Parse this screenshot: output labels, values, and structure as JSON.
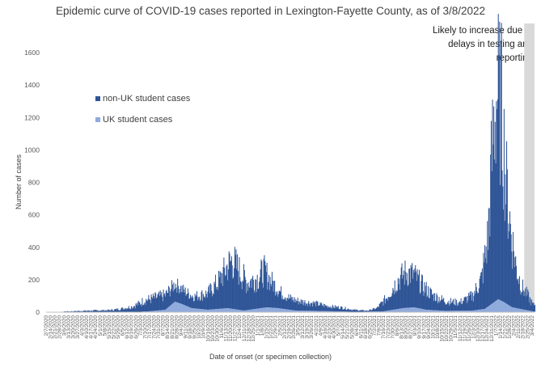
{
  "chart_data": {
    "type": "bar",
    "title": "Epidemic curve of COVID-19 cases reported in Lexington-Fayette County, as of 3/8/2022",
    "xlabel": "Date of onset (or specimen collection)",
    "ylabel": "Number of cases",
    "ylim": [
      0,
      1600
    ],
    "yticks": [
      0,
      200,
      400,
      600,
      800,
      1000,
      1200,
      1400,
      1600
    ],
    "x_range": [
      "2/7/2020",
      "3/8/2022"
    ],
    "shaded_region": {
      "start": "2/20/2022",
      "end": "3/8/2022",
      "label": "Likely to increase due to delays in testing and reporting"
    },
    "legend_position": "upper-left",
    "stacked": true,
    "series": [
      {
        "name": "non-UK student cases",
        "color": "#2f5597",
        "points": [
          [
            "3/15/2020",
            5
          ],
          [
            "4/1/2020",
            8
          ],
          [
            "4/20/2020",
            10
          ],
          [
            "5/15/2020",
            12
          ],
          [
            "6/1/2020",
            20
          ],
          [
            "6/20/2020",
            35
          ],
          [
            "7/10/2020",
            70
          ],
          [
            "7/25/2020",
            80
          ],
          [
            "8/10/2020",
            90
          ],
          [
            "8/25/2020",
            110
          ],
          [
            "9/10/2020",
            85
          ],
          [
            "9/25/2020",
            75
          ],
          [
            "10/15/2020",
            100
          ],
          [
            "11/1/2020",
            170
          ],
          [
            "11/15/2020",
            260
          ],
          [
            "11/22/2020",
            300
          ],
          [
            "12/5/2020",
            230
          ],
          [
            "12/15/2020",
            170
          ],
          [
            "1/1/2021",
            190
          ],
          [
            "1/10/2021",
            230
          ],
          [
            "1/20/2021",
            170
          ],
          [
            "2/5/2021",
            100
          ],
          [
            "2/20/2021",
            70
          ],
          [
            "3/10/2021",
            55
          ],
          [
            "4/1/2021",
            45
          ],
          [
            "4/20/2021",
            30
          ],
          [
            "5/10/2021",
            25
          ],
          [
            "5/30/2021",
            12
          ],
          [
            "6/20/2021",
            6
          ],
          [
            "7/5/2021",
            20
          ],
          [
            "7/20/2021",
            80
          ],
          [
            "8/5/2021",
            170
          ],
          [
            "8/20/2021",
            220
          ],
          [
            "9/1/2021",
            200
          ],
          [
            "9/15/2021",
            140
          ],
          [
            "10/1/2021",
            90
          ],
          [
            "10/20/2021",
            60
          ],
          [
            "11/10/2021",
            50
          ],
          [
            "12/1/2021",
            90
          ],
          [
            "12/15/2021",
            190
          ],
          [
            "12/25/2021",
            430
          ],
          [
            "1/2/2022",
            1050
          ],
          [
            "1/8/2022",
            1280
          ],
          [
            "1/15/2022",
            1200
          ],
          [
            "1/22/2022",
            750
          ],
          [
            "1/30/2022",
            450
          ],
          [
            "2/7/2022",
            250
          ],
          [
            "2/15/2022",
            140
          ],
          [
            "2/25/2022",
            90
          ],
          [
            "3/5/2022",
            40
          ]
        ]
      },
      {
        "name": "UK student cases",
        "color": "#8faadc",
        "points": [
          [
            "7/15/2020",
            5
          ],
          [
            "8/10/2020",
            15
          ],
          [
            "8/25/2020",
            65
          ],
          [
            "9/5/2020",
            50
          ],
          [
            "9/20/2020",
            25
          ],
          [
            "10/15/2020",
            15
          ],
          [
            "11/15/2020",
            25
          ],
          [
            "12/10/2020",
            10
          ],
          [
            "1/15/2021",
            30
          ],
          [
            "2/1/2021",
            25
          ],
          [
            "3/1/2021",
            10
          ],
          [
            "4/1/2021",
            8
          ],
          [
            "5/1/2021",
            5
          ],
          [
            "6/1/2021",
            2
          ],
          [
            "7/15/2021",
            5
          ],
          [
            "8/15/2021",
            25
          ],
          [
            "9/1/2021",
            30
          ],
          [
            "9/20/2021",
            15
          ],
          [
            "10/20/2021",
            8
          ],
          [
            "12/1/2021",
            10
          ],
          [
            "12/20/2021",
            20
          ],
          [
            "1/10/2022",
            80
          ],
          [
            "1/20/2022",
            60
          ],
          [
            "2/1/2022",
            30
          ],
          [
            "2/20/2022",
            15
          ],
          [
            "3/5/2022",
            5
          ]
        ]
      }
    ]
  }
}
